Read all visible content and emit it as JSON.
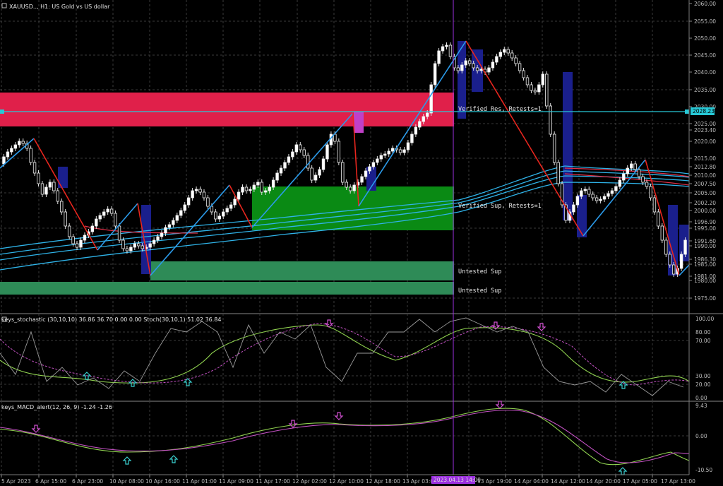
{
  "window": {
    "title": "XAUUSD.., H1:  US Gold vs US dollar"
  },
  "stoch_panel": {
    "title": "keys_stochastic (30,10,10) 36.86 36.70 0.00 0.00 Stoch(30,10,1) 51.02 36.84",
    "axis": [
      "100.00",
      "80.00",
      "70.00",
      "30.00",
      "20.00",
      "0.00"
    ]
  },
  "macd_panel": {
    "title": "keys_MACD_alert(12, 26, 9) -1.24 -1.26",
    "axis": [
      "9.43",
      "0.00",
      "-10.50"
    ]
  },
  "price_axis": {
    "labels": [
      "2060.00",
      "2055.00",
      "2050.00",
      "2045.00",
      "2040.00",
      "2035.00",
      "2030.00",
      "2025.00",
      "2023.40",
      "2020.00",
      "2015.00",
      "2012.80",
      "2010.00",
      "2007.50",
      "2005.00",
      "2002.20",
      "2000.00",
      "1996.90",
      "1995.00",
      "1991.60",
      "1990.00",
      "1986.30",
      "1985.00",
      "1981.00",
      "1980.00",
      "1975.00"
    ],
    "current_price": "2028.23",
    "current_price_color": "#27c8d6"
  },
  "time_axis": {
    "labels": [
      "5 Apr 2023",
      "6 Apr 15:00",
      "6 Apr 23:00",
      "10 Apr 08:00",
      "10 Apr 16:00",
      "11 Apr 01:00",
      "11 Apr 09:00",
      "11 Apr 17:00",
      "12 Apr 02:00",
      "12 Apr 10:00",
      "12 Apr 18:00",
      "13 Apr 03:00",
      "13 Apr 19:00",
      "14 Apr 04:00",
      "14 Apr 12:00",
      "14 Apr 20:00",
      "17 Apr 05:00",
      "17 Apr 13:00"
    ],
    "cursor_label": "2023.04.13 14:00"
  },
  "zones": {
    "resistance_label": "Verified Res, Retests=1",
    "support_label": "Verified Sup, Retests=1",
    "untested_1_label": "Untested Sup",
    "untested_2_label": "Untested Sup",
    "colors": {
      "resistance": "#e0204a",
      "support": "#0a8a14",
      "untested": "#2e8b57"
    }
  },
  "colors": {
    "bull_candle": "#ffffff",
    "bear_candle": "#f2f2f2",
    "zigzag_down": "#e8261e",
    "zigzag_up": "#2b9bea",
    "ma_ribbon": "#2fb3e8",
    "cursor_line": "#9b30e0"
  }
}
